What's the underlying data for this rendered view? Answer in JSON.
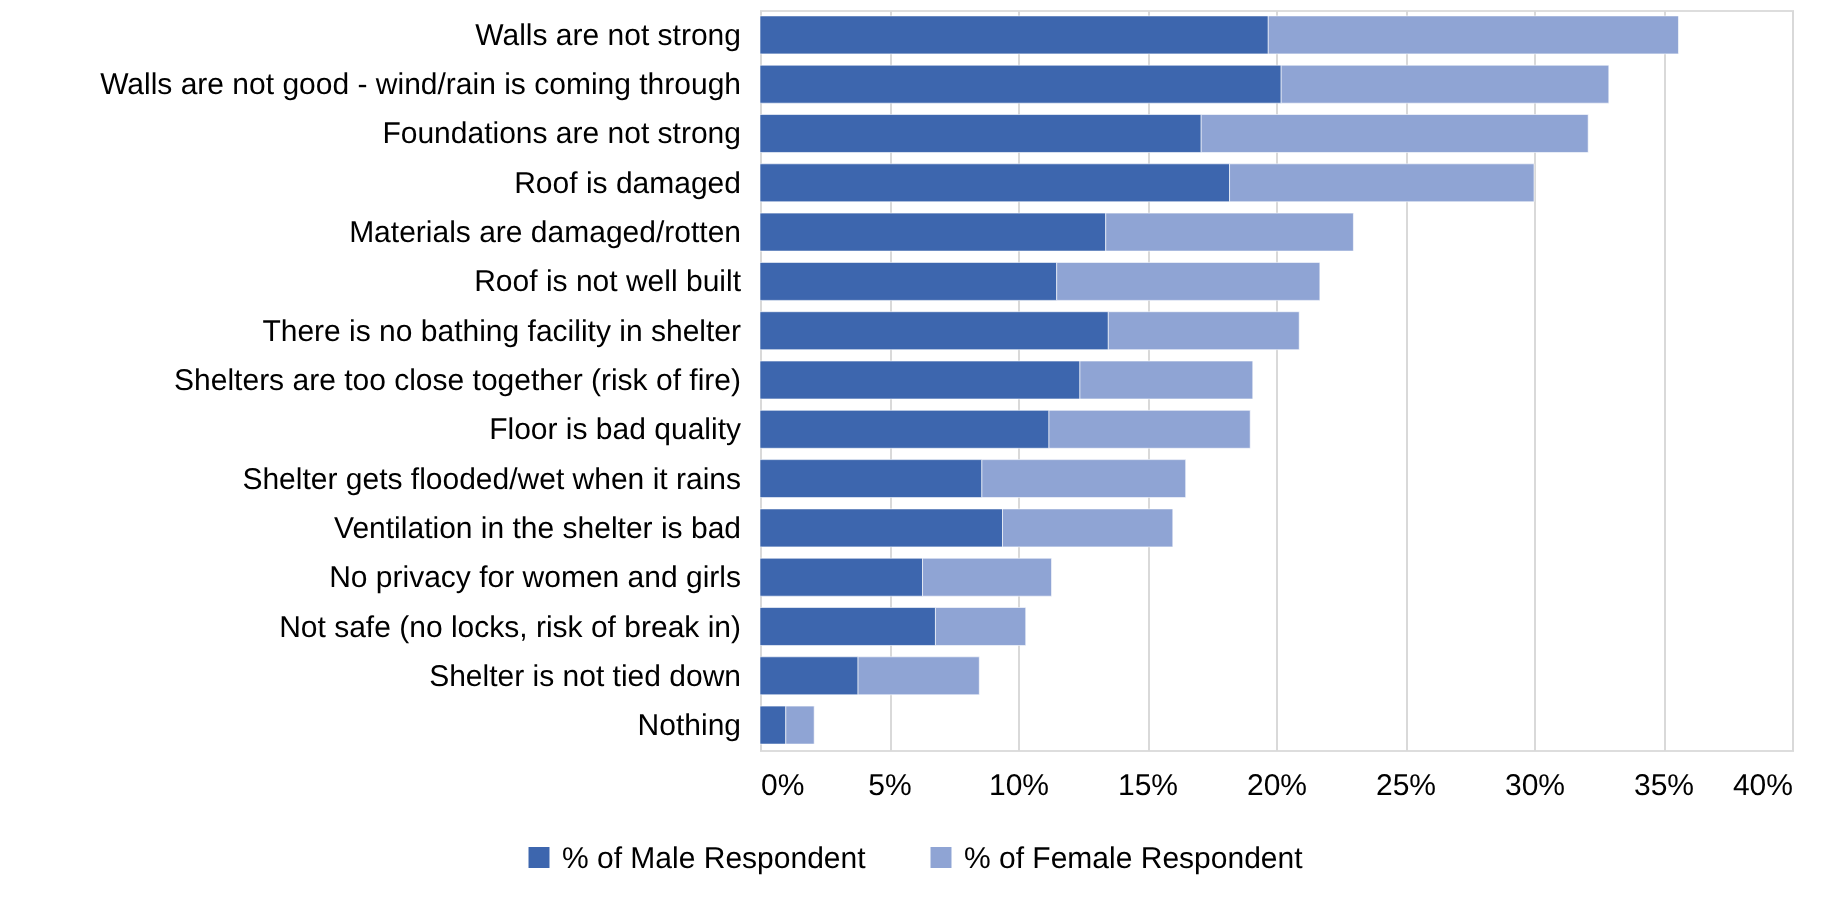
{
  "chart_data": {
    "type": "bar",
    "orientation": "horizontal",
    "stacked": true,
    "categories": [
      "Walls are not strong",
      "Walls are not good - wind/rain is coming through",
      "Foundations are not strong",
      "Roof is damaged",
      "Materials are damaged/rotten",
      "Roof is not well built",
      "There is no bathing facility in shelter",
      "Shelters are too close together (risk of fire)",
      "Floor is bad quality",
      "Shelter gets flooded/wet when it rains",
      "Ventilation in the shelter is bad",
      "No privacy for women and girls",
      "Not safe (no locks, risk of break in)",
      "Shelter is not tied down",
      "Nothing"
    ],
    "series": [
      {
        "name": "% of Male Respondent",
        "color": "#3d66ae",
        "values": [
          19.7,
          20.2,
          17.1,
          18.2,
          13.4,
          11.5,
          13.5,
          12.4,
          11.2,
          8.6,
          9.4,
          6.3,
          6.8,
          3.8,
          1.0
        ]
      },
      {
        "name": "% of Female Respondent",
        "color": "#8fa4d4",
        "values": [
          15.9,
          12.7,
          15.0,
          11.8,
          9.6,
          10.2,
          7.4,
          6.7,
          7.8,
          7.9,
          6.6,
          5.0,
          3.5,
          4.7,
          1.1
        ]
      }
    ],
    "xlim": [
      0,
      40
    ],
    "xticks": [
      {
        "value": 0,
        "label": "0%"
      },
      {
        "value": 5,
        "label": "5%"
      },
      {
        "value": 10,
        "label": "10%"
      },
      {
        "value": 15,
        "label": "15%"
      },
      {
        "value": 20,
        "label": "20%"
      },
      {
        "value": 25,
        "label": "25%"
      },
      {
        "value": 30,
        "label": "30%"
      },
      {
        "value": 35,
        "label": "35%"
      },
      {
        "value": 40,
        "label": "40%"
      }
    ],
    "grid": "x",
    "legend": "bottom"
  }
}
